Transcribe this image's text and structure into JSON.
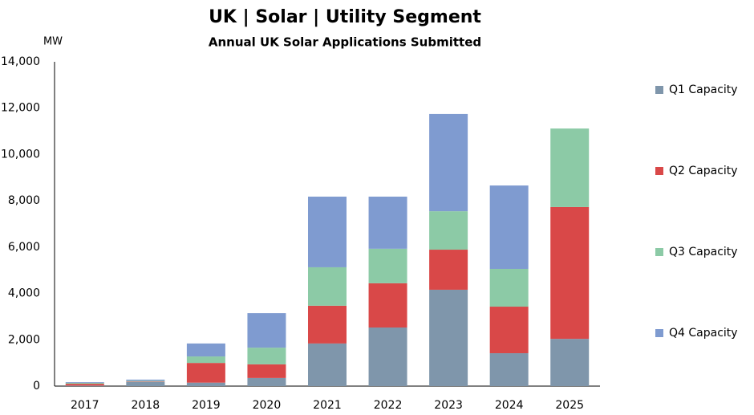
{
  "chart_data": {
    "type": "stacked_bar",
    "title": "UK | Solar | Utility Segment",
    "subtitle": "Annual UK Solar Applications Submitted",
    "y_unit": "MW",
    "categories": [
      "2017",
      "2018",
      "2019",
      "2020",
      "2021",
      "2022",
      "2023",
      "2024",
      "2025"
    ],
    "series": [
      {
        "name": "Q1 Capacity",
        "color": "#7f96ab",
        "values": [
          20,
          180,
          150,
          350,
          1840,
          2530,
          4160,
          1420,
          2040
        ]
      },
      {
        "name": "Q2 Capacity",
        "color": "#d94848",
        "values": [
          80,
          20,
          850,
          590,
          1630,
          1910,
          1730,
          2010,
          5690
        ]
      },
      {
        "name": "Q3 Capacity",
        "color": "#8ccaa6",
        "values": [
          40,
          30,
          280,
          720,
          1660,
          1490,
          1660,
          1630,
          3390
        ]
      },
      {
        "name": "Q4 Capacity",
        "color": "#7f9bd0",
        "values": [
          30,
          50,
          560,
          1490,
          3050,
          2250,
          4200,
          3600,
          0
        ]
      }
    ],
    "ylim": [
      0,
      14000
    ],
    "yticks": [
      0,
      {
        "value": 2000,
        "label": "2,000"
      },
      {
        "value": 4000,
        "label": "4,000"
      },
      {
        "value": 6000,
        "label": "6,000"
      },
      {
        "value": 8000,
        "label": "8,000"
      },
      {
        "value": 10000,
        "label": "10,000"
      },
      {
        "value": 12000,
        "label": "12,000"
      },
      {
        "value": 14000,
        "label": "14,000"
      }
    ],
    "grid": false,
    "legend_position": "right"
  }
}
